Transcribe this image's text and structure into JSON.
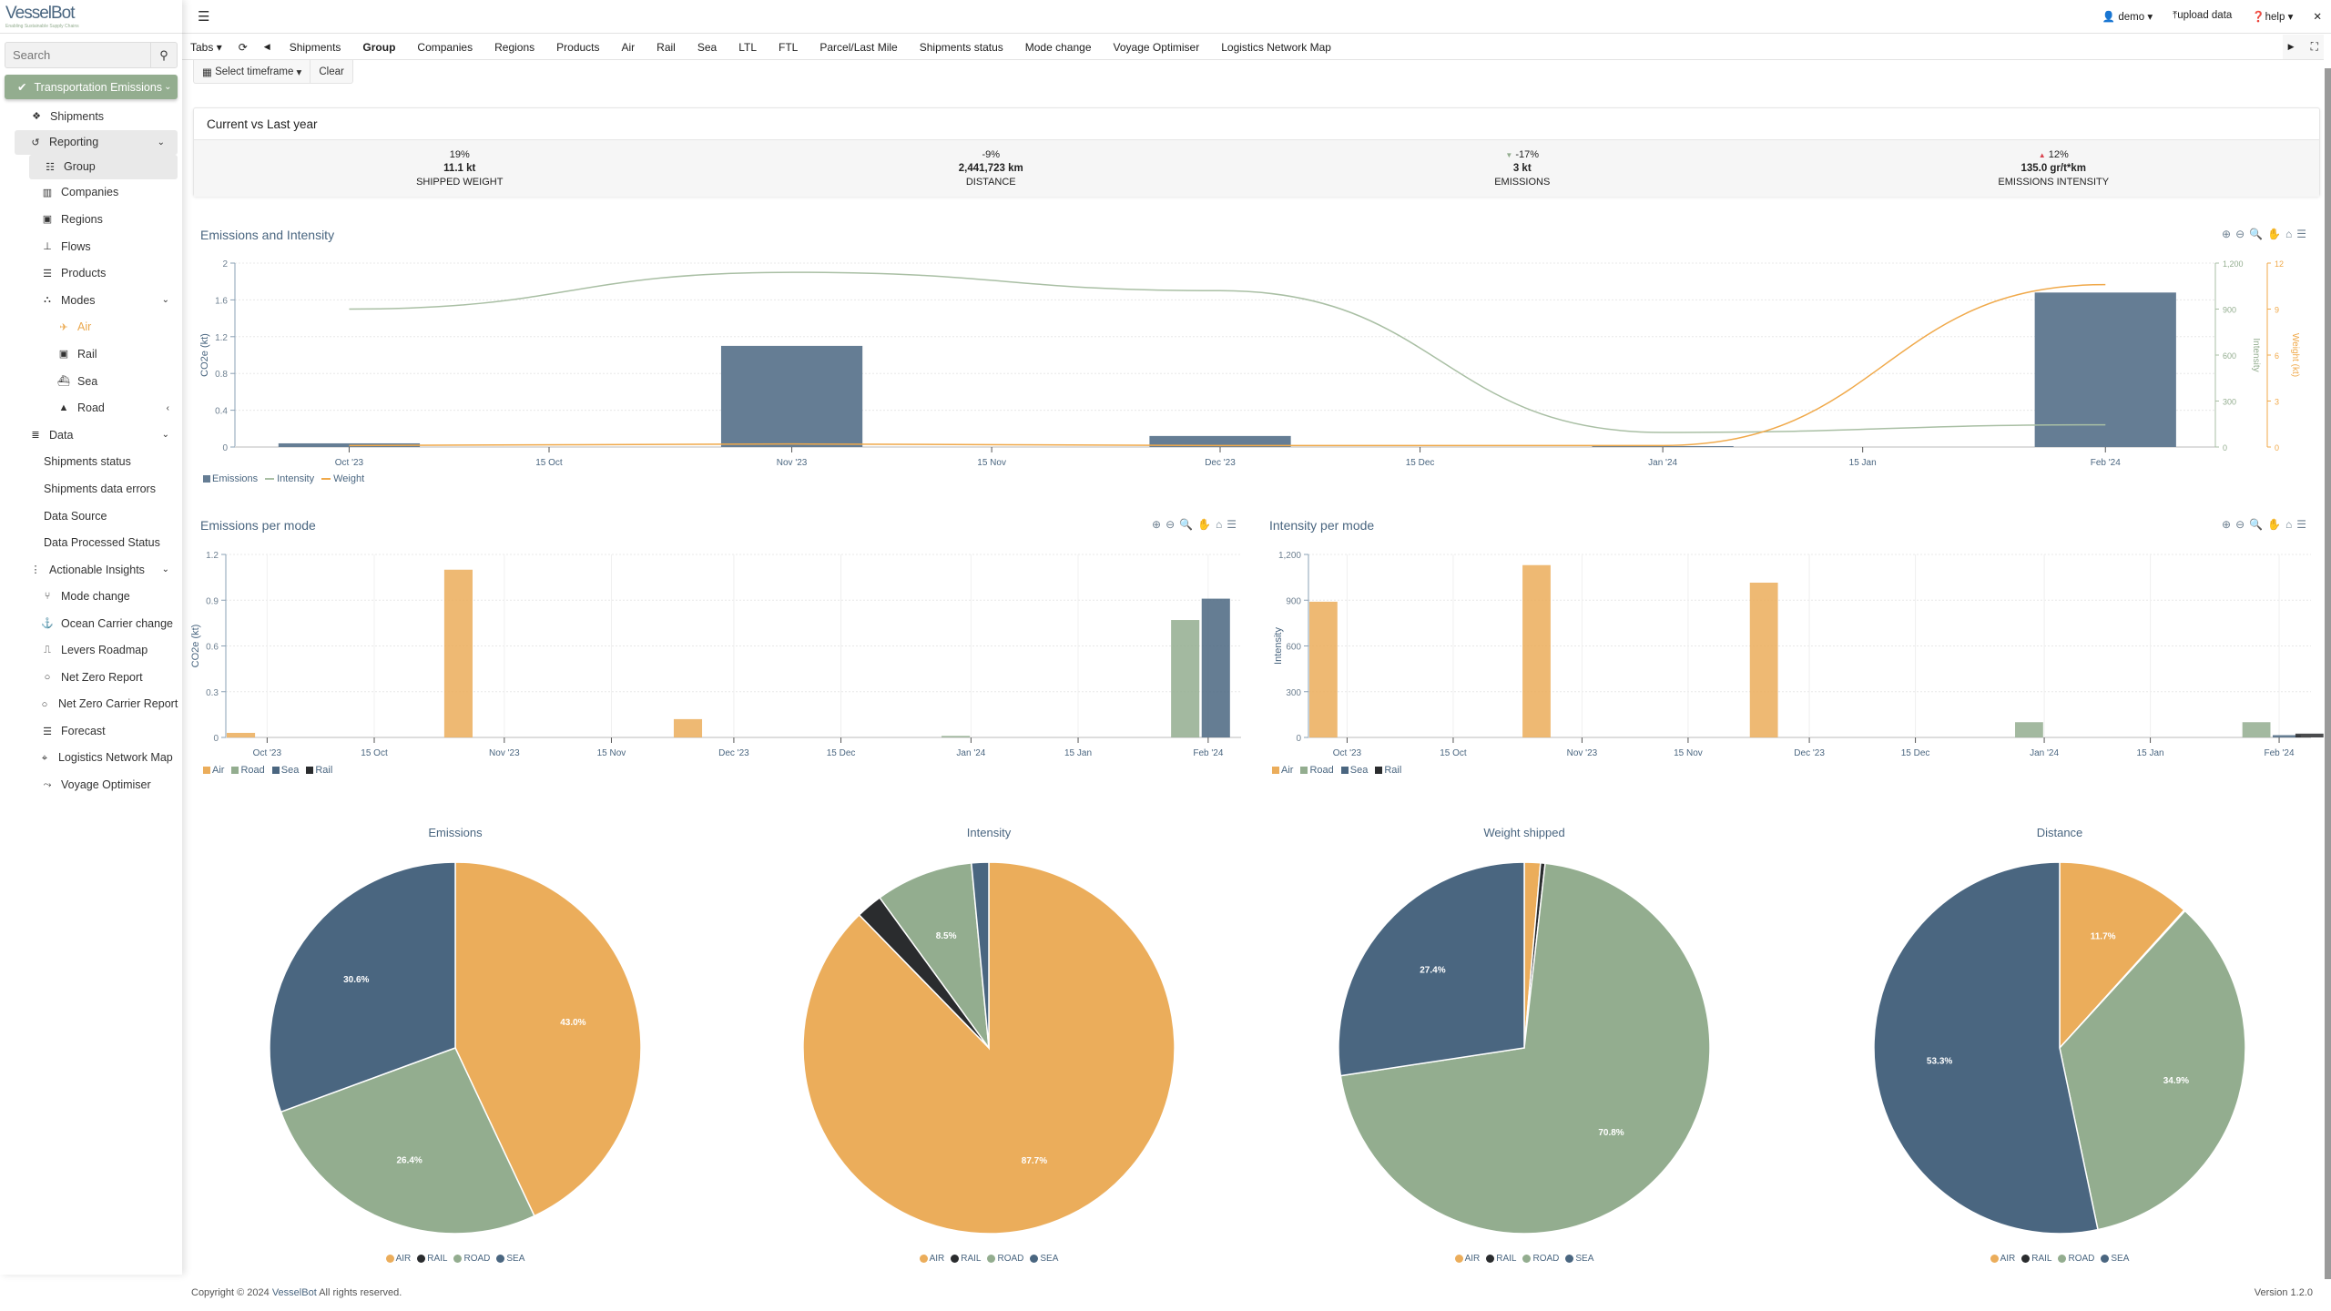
{
  "brand": {
    "name": "VesselBot",
    "tagline": "Enabling Sustainable Supply Chains"
  },
  "search": {
    "placeholder": "Search"
  },
  "sidebar": {
    "section": "Transportation Emissions",
    "items": [
      {
        "label": "Shipments",
        "icon": "boxes-icon",
        "cls": "l1"
      },
      {
        "label": "Reporting",
        "icon": "history-icon",
        "cls": "l1b",
        "chev": "⌄"
      },
      {
        "label": "Group",
        "icon": "sitemap-icon",
        "cls": "l2sel"
      },
      {
        "label": "Companies",
        "icon": "building-icon",
        "cls": "l2"
      },
      {
        "label": "Regions",
        "icon": "map-icon",
        "cls": "l2"
      },
      {
        "label": "Flows",
        "icon": "network-icon",
        "cls": "l2"
      },
      {
        "label": "Products",
        "icon": "list-icon",
        "cls": "l2"
      },
      {
        "label": "Modes",
        "icon": "modes-icon",
        "cls": "l2",
        "chev": "⌄"
      },
      {
        "label": "Air",
        "icon": "plane-icon",
        "cls": "l3 active"
      },
      {
        "label": "Rail",
        "icon": "train-icon",
        "cls": "l3"
      },
      {
        "label": "Sea",
        "icon": "ship-icon",
        "cls": "l3"
      },
      {
        "label": "Road",
        "icon": "road-icon",
        "cls": "l3",
        "chev": "‹"
      },
      {
        "label": "Data",
        "icon": "database-icon",
        "cls": "l0",
        "chev": "⌄"
      },
      {
        "label": "Shipments status",
        "icon": "",
        "cls": "l0d"
      },
      {
        "label": "Shipments data errors",
        "icon": "",
        "cls": "l0d"
      },
      {
        "label": "Data Source",
        "icon": "",
        "cls": "l0d"
      },
      {
        "label": "Data Processed Status",
        "icon": "",
        "cls": "l0d"
      },
      {
        "label": "Actionable Insights",
        "icon": "insights-icon",
        "cls": "l0",
        "chev": "⌄"
      },
      {
        "label": "Mode change",
        "icon": "branch-icon",
        "cls": "l2"
      },
      {
        "label": "Ocean Carrier change",
        "icon": "carrier-icon",
        "cls": "l2"
      },
      {
        "label": "Levers Roadmap",
        "icon": "wave-icon",
        "cls": "l2"
      },
      {
        "label": "Net Zero Report",
        "icon": "circle-icon",
        "cls": "l2"
      },
      {
        "label": "Net Zero Carrier Report",
        "icon": "circle-icon",
        "cls": "wrap"
      },
      {
        "label": "Forecast",
        "icon": "list-icon",
        "cls": "l2"
      },
      {
        "label": "Logistics Network Map",
        "icon": "map-marker-icon",
        "cls": "wrap"
      },
      {
        "label": "Voyage Optimiser",
        "icon": "route-icon",
        "cls": "l2"
      }
    ]
  },
  "header": {
    "user": "demo",
    "upload": "upload data",
    "help": "help"
  },
  "tabs": {
    "menu": "Tabs",
    "items": [
      "Shipments",
      "Group",
      "Companies",
      "Regions",
      "Products",
      "Air",
      "Rail",
      "Sea",
      "LTL",
      "FTL",
      "Parcel/Last Mile",
      "Shipments status",
      "Mode change",
      "Voyage Optimiser",
      "Logistics Network Map"
    ],
    "active": "Group"
  },
  "timeframe": {
    "select": "Select timeframe",
    "clear": "Clear"
  },
  "summary": {
    "title": "Current vs Last year",
    "stats": [
      {
        "change": "19%",
        "trend": "none",
        "value": "11.1 kt",
        "label": "SHIPPED WEIGHT"
      },
      {
        "change": "-9%",
        "trend": "none",
        "value": "2,441,723 km",
        "label": "DISTANCE"
      },
      {
        "change": "-17%",
        "trend": "down",
        "value": "3 kt",
        "label": "EMISSIONS"
      },
      {
        "change": "12%",
        "trend": "up",
        "value": "135.0 gr/t*km",
        "label": "EMISSIONS INTENSITY"
      }
    ]
  },
  "colors": {
    "air": "#EBAD5B",
    "rail": "#2A2C2E",
    "road": "#93AD8F",
    "sea": "#4A6680",
    "emissions": "#657D94",
    "intensity": "#A9BFA4",
    "weight": "#F0A94A"
  },
  "chart_data": [
    {
      "type": "bar",
      "title": "Emissions and Intensity",
      "ylabel": "CO2e (kt)",
      "ylim": [
        0,
        2
      ],
      "yticks": [
        "0",
        "0.4",
        "0.8",
        "1.2",
        "1.6",
        "2"
      ],
      "y2label": "Intensity",
      "y2lim": [
        0,
        1200
      ],
      "y2ticks": [
        "0",
        "300",
        "600",
        "900",
        "1,200"
      ],
      "y3label": "Weight (kt)",
      "y3lim": [
        0,
        12
      ],
      "y3ticks": [
        "0",
        "3",
        "6",
        "9",
        "12"
      ],
      "xticks": [
        {
          "date": "2023-10-01",
          "label": "Oct '23"
        },
        {
          "date": "2023-10-15",
          "label": "15 Oct"
        },
        {
          "date": "2023-11-01",
          "label": "Nov '23"
        },
        {
          "date": "2023-11-15",
          "label": "15 Nov"
        },
        {
          "date": "2023-12-01",
          "label": "Dec '23"
        },
        {
          "date": "2023-12-15",
          "label": "15 Dec"
        },
        {
          "date": "2024-01-01",
          "label": "Jan '24"
        },
        {
          "date": "2024-01-15",
          "label": "15 Jan"
        },
        {
          "date": "2024-02-01",
          "label": "Feb '24"
        }
      ],
      "x": [
        "2023-10-01",
        "2023-11-01",
        "2023-12-01",
        "2024-01-01",
        "2024-02-01"
      ],
      "series": [
        {
          "name": "Emissions",
          "kind": "bar",
          "values": [
            0.04,
            1.1,
            0.12,
            0.01,
            1.68
          ]
        },
        {
          "name": "Intensity",
          "kind": "line",
          "axis": "y2",
          "values": [
            900,
            1140,
            1020,
            95,
            145
          ]
        },
        {
          "name": "Weight",
          "kind": "line",
          "axis": "y3",
          "values": [
            0.1,
            0.2,
            0.1,
            0.1,
            10.6
          ]
        }
      ],
      "legend": "bottom-left"
    },
    {
      "type": "bar",
      "title": "Emissions per mode",
      "ylabel": "CO2e (kt)",
      "ylim": [
        0,
        1.2
      ],
      "yticks": [
        "0",
        "0.3",
        "0.6",
        "0.9",
        "1.2"
      ],
      "xticks": [
        {
          "date": "2023-10-01",
          "label": "Oct '23"
        },
        {
          "date": "2023-10-15",
          "label": "15 Oct"
        },
        {
          "date": "2023-11-01",
          "label": "Nov '23"
        },
        {
          "date": "2023-11-15",
          "label": "15 Nov"
        },
        {
          "date": "2023-12-01",
          "label": "Dec '23"
        },
        {
          "date": "2023-12-15",
          "label": "15 Dec"
        },
        {
          "date": "2024-01-01",
          "label": "Jan '24"
        },
        {
          "date": "2024-01-15",
          "label": "15 Jan"
        },
        {
          "date": "2024-02-01",
          "label": "Feb '24"
        }
      ],
      "series_names": [
        "Air",
        "Road",
        "Sea",
        "Rail"
      ],
      "bars": [
        {
          "mode": "Air",
          "date": "2023-09-27",
          "value": 0.03
        },
        {
          "mode": "Air",
          "date": "2023-10-26",
          "value": 1.1
        },
        {
          "mode": "Air",
          "date": "2023-11-25",
          "value": 0.12
        },
        {
          "mode": "Road",
          "date": "2023-12-30",
          "value": 0.01
        },
        {
          "mode": "Road",
          "date": "2024-01-29",
          "value": 0.77
        },
        {
          "mode": "Sea",
          "date": "2024-02-02",
          "value": 0.91
        }
      ],
      "legend": "bottom-left"
    },
    {
      "type": "bar",
      "title": "Intensity per mode",
      "ylabel": "Intensity",
      "ylim": [
        0,
        1200
      ],
      "yticks": [
        "0",
        "300",
        "600",
        "900",
        "1,200"
      ],
      "xticks": [
        {
          "date": "2023-10-01",
          "label": "Oct '23"
        },
        {
          "date": "2023-10-15",
          "label": "15 Oct"
        },
        {
          "date": "2023-11-01",
          "label": "Nov '23"
        },
        {
          "date": "2023-11-15",
          "label": "15 Nov"
        },
        {
          "date": "2023-12-01",
          "label": "Dec '23"
        },
        {
          "date": "2023-12-15",
          "label": "15 Dec"
        },
        {
          "date": "2024-01-01",
          "label": "Jan '24"
        },
        {
          "date": "2024-01-15",
          "label": "15 Jan"
        },
        {
          "date": "2024-02-01",
          "label": "Feb '24"
        }
      ],
      "series_names": [
        "Air",
        "Road",
        "Sea",
        "Rail"
      ],
      "bars": [
        {
          "mode": "Air",
          "date": "2023-09-27",
          "value": 890
        },
        {
          "mode": "Air",
          "date": "2023-10-26",
          "value": 1130
        },
        {
          "mode": "Air",
          "date": "2023-11-25",
          "value": 1015
        },
        {
          "mode": "Road",
          "date": "2023-12-30",
          "value": 100
        },
        {
          "mode": "Road",
          "date": "2024-01-29",
          "value": 100
        },
        {
          "mode": "Sea",
          "date": "2024-02-02",
          "value": 15
        },
        {
          "mode": "Rail",
          "date": "2024-02-05",
          "value": 25
        }
      ],
      "legend": "bottom-left"
    },
    {
      "type": "pie",
      "title": "Emissions",
      "labels": [
        "AIR",
        "RAIL",
        "ROAD",
        "SEA"
      ],
      "values": [
        43.0,
        0.0,
        26.4,
        30.6
      ],
      "shown_labels": [
        "43.0%",
        "",
        "26.4%",
        "30.6%"
      ]
    },
    {
      "type": "pie",
      "title": "Intensity",
      "labels": [
        "AIR",
        "RAIL",
        "ROAD",
        "SEA"
      ],
      "values": [
        87.7,
        2.3,
        8.5,
        1.5
      ],
      "shown_labels": [
        "87.7%",
        "",
        "8.5%",
        ""
      ]
    },
    {
      "type": "pie",
      "title": "Weight shipped",
      "labels": [
        "AIR",
        "RAIL",
        "ROAD",
        "SEA"
      ],
      "values": [
        1.4,
        0.4,
        70.8,
        27.4
      ],
      "shown_labels": [
        "",
        "",
        "70.8%",
        "27.4%"
      ]
    },
    {
      "type": "pie",
      "title": "Distance",
      "labels": [
        "AIR",
        "RAIL",
        "ROAD",
        "SEA"
      ],
      "values": [
        11.7,
        0.1,
        34.9,
        53.3
      ],
      "shown_labels": [
        "11.7%",
        "",
        "34.9%",
        "53.3%"
      ]
    }
  ],
  "footer": {
    "copyright": "Copyright © 2024",
    "brand": "VesselBot",
    "rights": "All rights reserved.",
    "version": "Version 1.2.0"
  }
}
